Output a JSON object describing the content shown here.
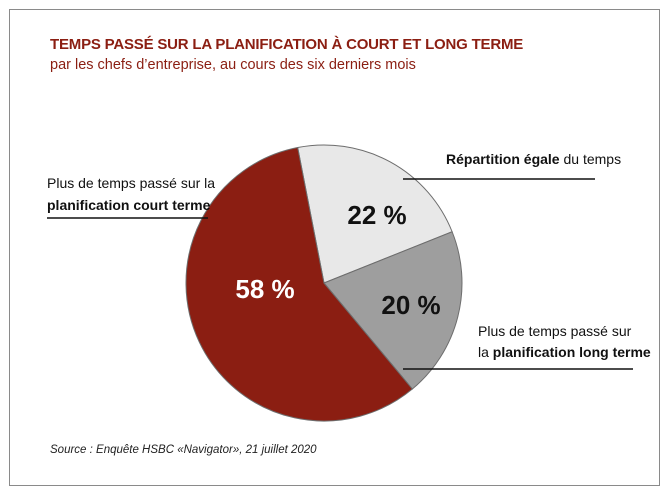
{
  "title": "TEMPS PASSÉ SUR LA PLANIFICATION À COURT ET LONG TERME",
  "subtitle": "par les chefs d’entreprise, au cours des six derniers mois",
  "source": "Source : Enquête HSBC «Navigator», 21 juillet 2020",
  "colors": {
    "title": "#8b1e12",
    "court_terme": "#8b1e12",
    "egale": "#e8e8e8",
    "long_terme": "#9e9e9e"
  },
  "chart_data": {
    "type": "pie",
    "slices": [
      {
        "key": "egale",
        "value": 22,
        "value_label": "22 %",
        "label_parts": [
          [
            {
              "text": "Répartition égale",
              "bold": true
            },
            {
              "text": " du temps",
              "bold": false
            }
          ]
        ]
      },
      {
        "key": "long_terme",
        "value": 20,
        "value_label": "20 %",
        "label_parts": [
          [
            {
              "text": "Plus de temps passé sur",
              "bold": false
            }
          ],
          [
            {
              "text": "la ",
              "bold": false
            },
            {
              "text": "planification long terme",
              "bold": true
            }
          ]
        ]
      },
      {
        "key": "court_terme",
        "value": 58,
        "value_label": "58 %",
        "label_parts": [
          [
            {
              "text": "Plus de temps passé sur la",
              "bold": false
            }
          ],
          [
            {
              "text": "planification court terme",
              "bold": true
            }
          ]
        ]
      }
    ]
  }
}
